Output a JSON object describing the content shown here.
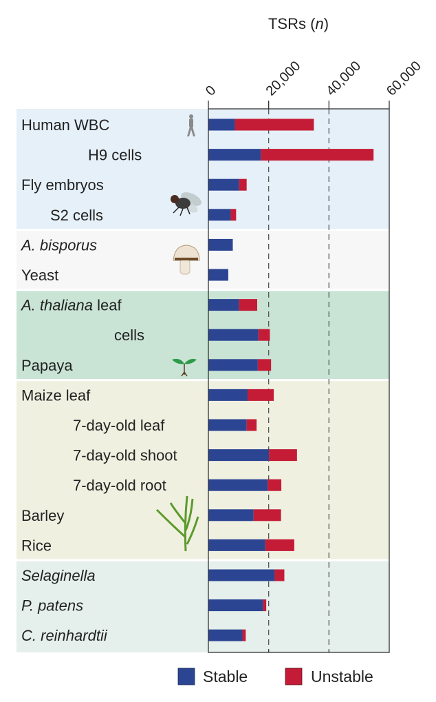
{
  "chart_data": {
    "type": "bar",
    "orientation": "horizontal",
    "stacked": true,
    "title": "TSRs (n)",
    "title_plain": "TSRs (",
    "title_italic": "n",
    "title_close": ")",
    "xlim": [
      0,
      60000
    ],
    "xticks": [
      0,
      20000,
      40000,
      60000
    ],
    "xtick_labels": [
      "0",
      "20,000",
      "40,000",
      "60,000"
    ],
    "grid": "dashed vertical at 20,000 and 40,000",
    "legend_position": "bottom",
    "categories": [
      "Human WBC",
      "H9 cells",
      "Fly embryos",
      "S2 cells",
      "A. bisporus",
      "Yeast",
      "A. thaliana leaf",
      "cells",
      "Papaya",
      "Maize leaf",
      "7-day-old leaf",
      "7-day-old shoot",
      "7-day-old root",
      "Barley",
      "Rice",
      "Selaginella",
      "P. patens",
      "C. reinhardtii"
    ],
    "italic_prefix": [
      "",
      "",
      "",
      "",
      "A. bisporus",
      "",
      "A. thaliana",
      "",
      "",
      "",
      "",
      "",
      "",
      "",
      "",
      "Selaginella",
      "P. patens",
      "C. reinhardtii"
    ],
    "groups": [
      {
        "rows": [
          0,
          3
        ],
        "color": "#e6f0f9",
        "icons": [
          "human-icon",
          "fly-icon"
        ]
      },
      {
        "rows": [
          4,
          5
        ],
        "color": "#f7f7f7",
        "icons": [
          "mushroom-icon"
        ]
      },
      {
        "rows": [
          6,
          8
        ],
        "color": "#c9e4d5",
        "icons": [
          "seedling-icon"
        ]
      },
      {
        "rows": [
          9,
          14
        ],
        "color": "#f0f0e1",
        "icons": [
          "grass-icon"
        ]
      },
      {
        "rows": [
          15,
          17
        ],
        "color": "#e5efeb",
        "icons": []
      }
    ],
    "series": [
      {
        "name": "Stable",
        "color": "#2b4593",
        "values": [
          8800,
          17400,
          10200,
          7400,
          8100,
          6600,
          10200,
          16600,
          16400,
          13000,
          12700,
          20100,
          19700,
          15000,
          18900,
          22000,
          18200,
          11300
        ]
      },
      {
        "name": "Unstable",
        "color": "#c41c36",
        "values": [
          26200,
          37400,
          2500,
          1800,
          0,
          0,
          6000,
          3800,
          4400,
          8700,
          3300,
          9300,
          4500,
          9100,
          9600,
          3200,
          1000,
          1100
        ]
      }
    ]
  }
}
